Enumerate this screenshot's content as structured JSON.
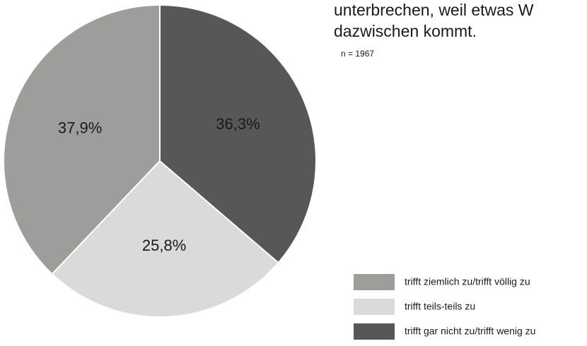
{
  "chart_data": {
    "type": "pie",
    "title": [
      "unterbrechen, weil etwas W",
      "dazwischen kommt."
    ],
    "subtitle": "n = 1967",
    "categories": [
      "trifft ziemlich zu/trifft völlig zu",
      "trifft teils-teils zu",
      "trifft gar nicht zu/trifft wenig zu"
    ],
    "values": [
      37.9,
      25.8,
      36.3
    ],
    "value_labels": [
      "37,9%",
      "25,8%",
      "36,3%"
    ],
    "colors": [
      "#9d9d9c",
      "#dadada",
      "#575757"
    ],
    "legend": "bottom-right"
  }
}
